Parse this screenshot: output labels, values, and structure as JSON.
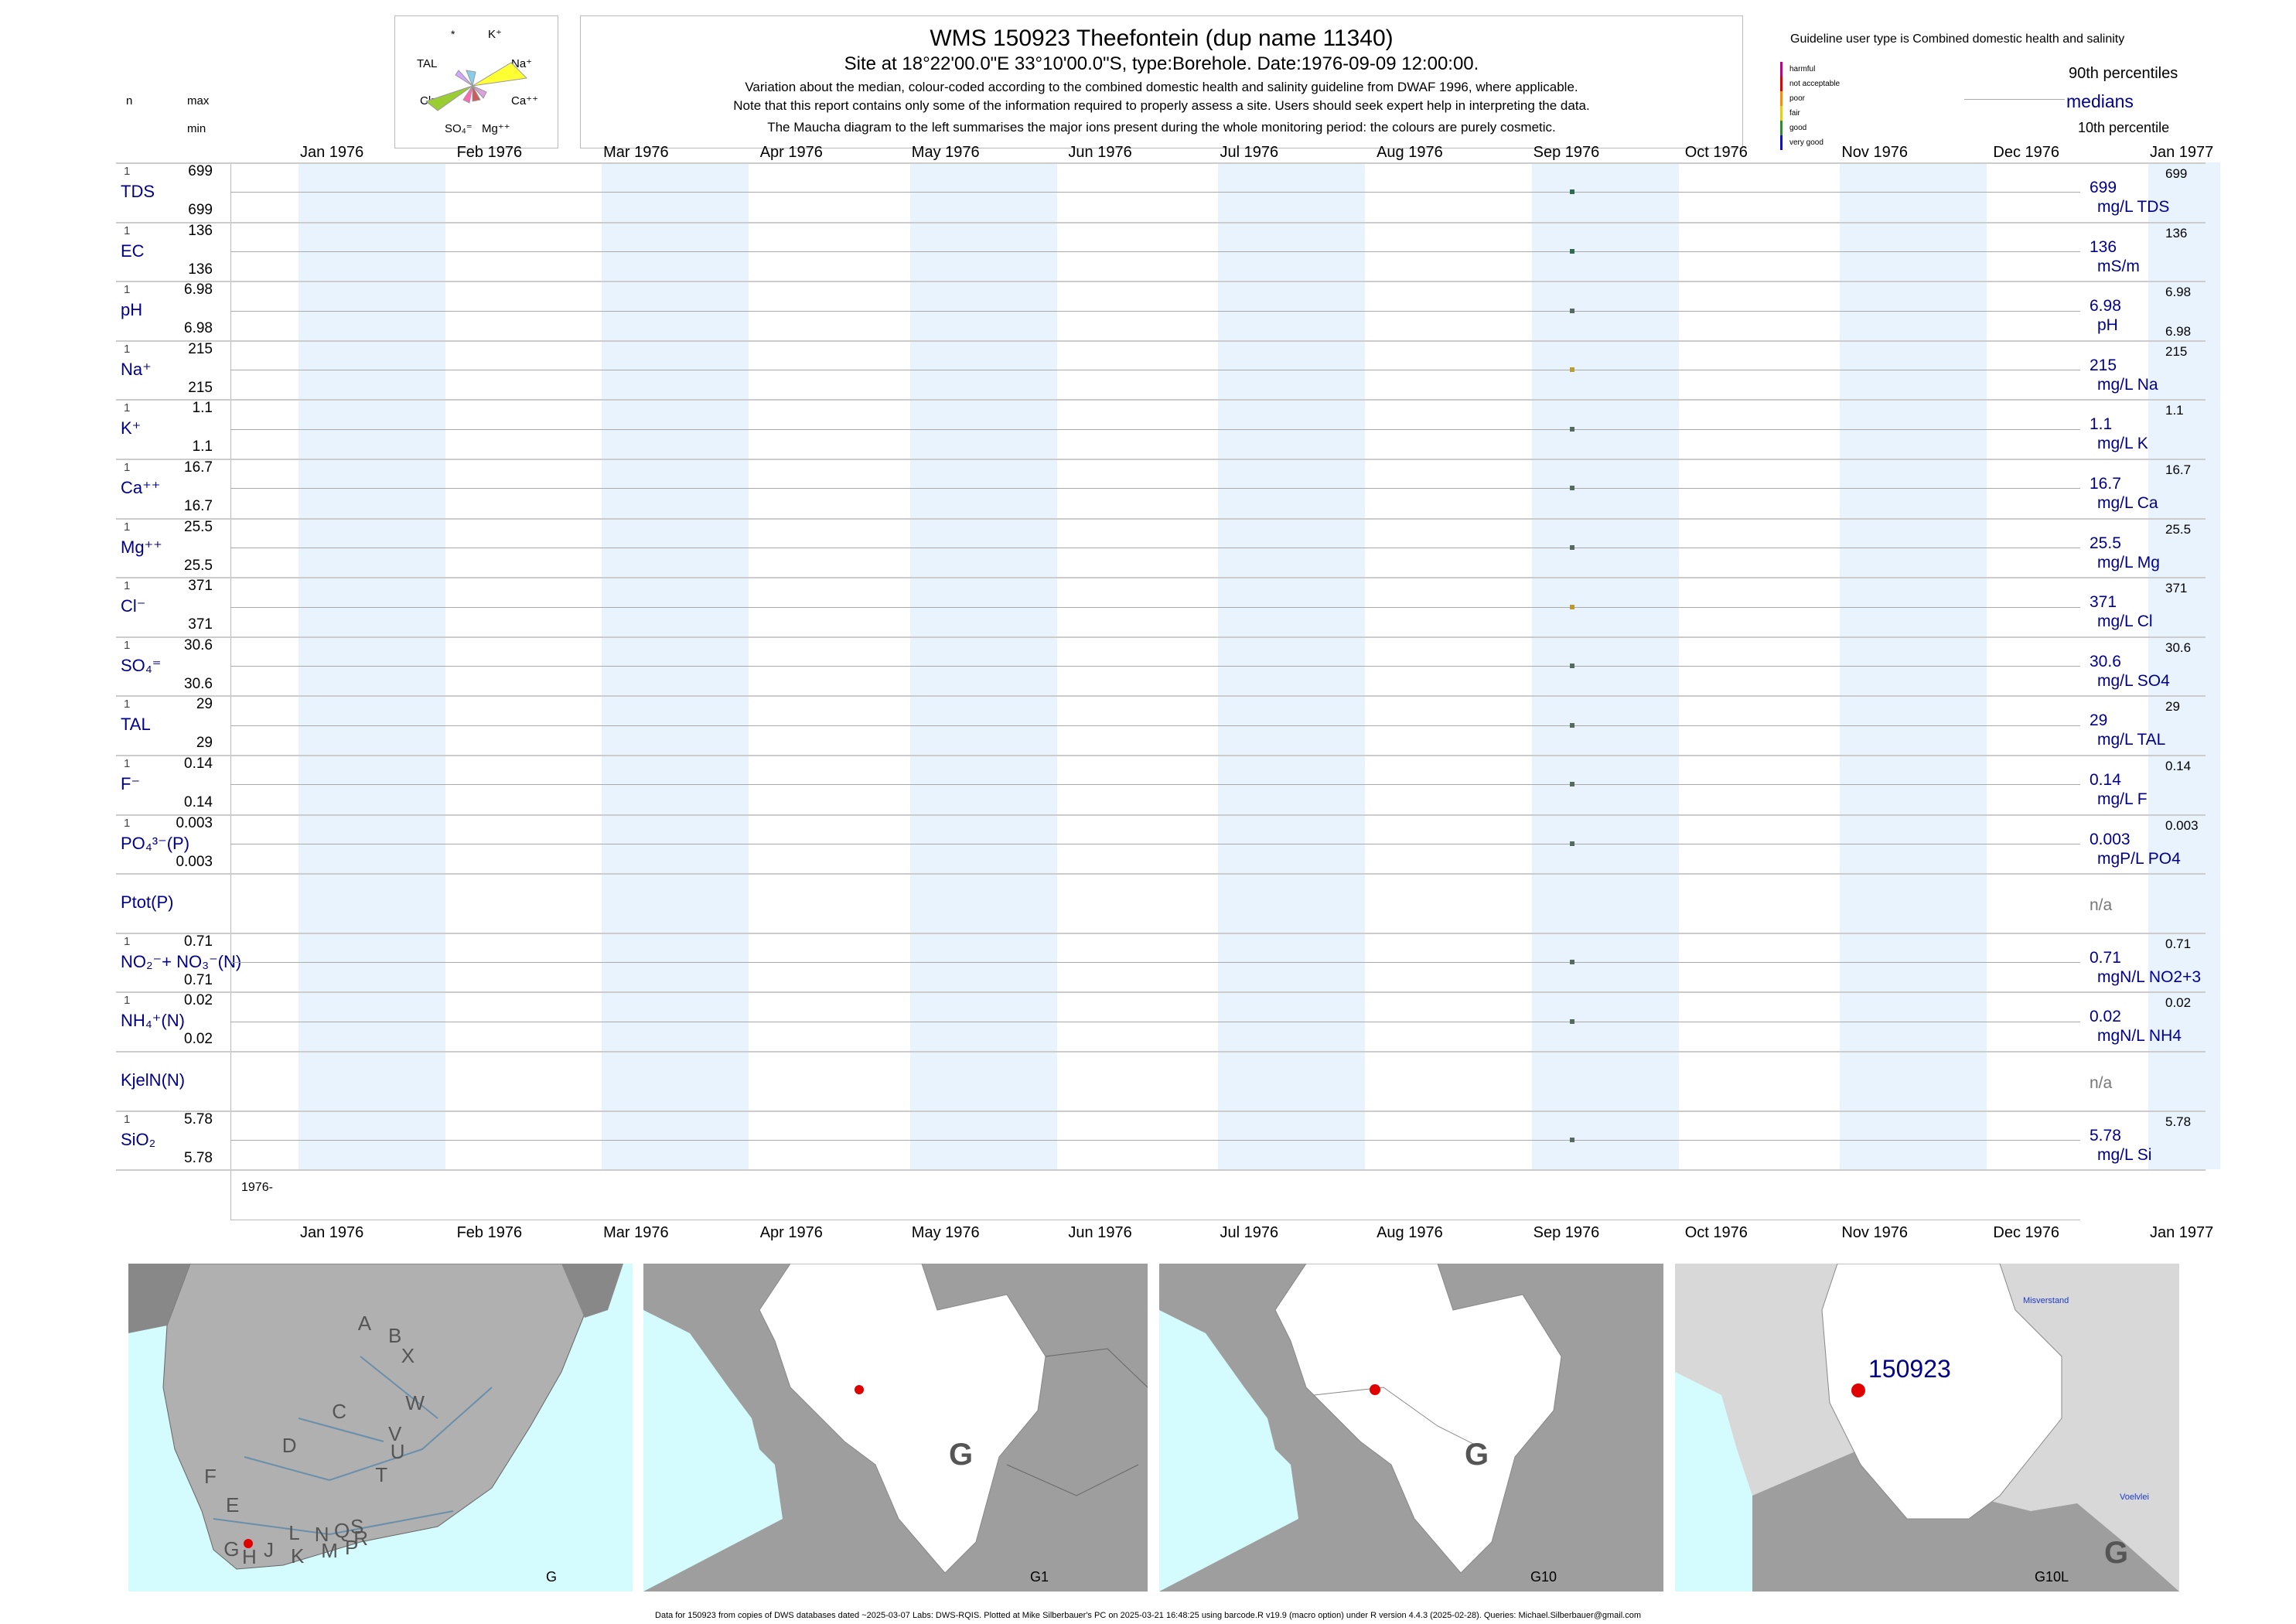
{
  "header": {
    "title": "WMS 150923  Theefontein (dup name 11340)",
    "site_line": "Site at 18°22'00.0\"E 33°10'00.0\"S, type:Borehole. Date:1976-09-09 12:00:00.",
    "note1": "Variation about the median,  colour-coded according to the combined domestic health and salinity guideline from DWAF 1996, where applicable.",
    "note2": "Note that this report contains only some of the information required to properly assess a site. Users should seek expert help in interpreting the data.",
    "note3": "The Maucha diagram to the left summarises the major ions present during the whole monitoring period: the colours are purely cosmetic."
  },
  "maucha": {
    "labels": {
      "star": "*",
      "k": "K⁺",
      "tal": "TAL",
      "na": "Na⁺",
      "cl": "Cl⁻",
      "ca": "Ca⁺⁺",
      "so4": "SO₄⁼",
      "mg": "Mg⁺⁺"
    }
  },
  "left_header": {
    "n": "n",
    "max": "max",
    "min": "min"
  },
  "legend": {
    "title": "Guideline user type is Combined domestic health and salinity",
    "categories": [
      {
        "label": "harmful",
        "color": "#c0008c"
      },
      {
        "label": "not acceptable",
        "color": "#e00000"
      },
      {
        "label": "poor",
        "color": "#ff8c00"
      },
      {
        "label": "fair",
        "color": "#e8d000"
      },
      {
        "label": "good",
        "color": "#2e8b2e"
      },
      {
        "label": "very good",
        "color": "#1010c0"
      }
    ],
    "p90": "90th percentiles",
    "median": "medians",
    "p10": "10th percentile"
  },
  "months": [
    "Jan 1976",
    "Feb 1976",
    "Mar 1976",
    "Apr 1976",
    "May 1976",
    "Jun 1976",
    "Jul 1976",
    "Aug 1976",
    "Sep 1976",
    "Oct 1976",
    "Nov 1976",
    "Dec 1976",
    "Jan 1977"
  ],
  "year_label": "1976-",
  "chart_data": {
    "type": "scatter",
    "sample_date": "1976-09-09",
    "xlim": [
      "1976-01-01",
      "1977-01-01"
    ],
    "parameters": [
      {
        "label": "TDS",
        "n": "1",
        "max": "699",
        "min": "699",
        "median": "699",
        "unit": "mg/L TDS",
        "p90": "699",
        "p10": "",
        "color": "#2e6b4f",
        "value": 699
      },
      {
        "label": "EC",
        "n": "1",
        "max": "136",
        "min": "136",
        "median": "136",
        "unit": "mS/m",
        "p90": "136",
        "p10": "",
        "color": "#2e6b4f",
        "value": 136
      },
      {
        "label": "pH",
        "n": "1",
        "max": "6.98",
        "min": "6.98",
        "median": "6.98",
        "unit": "pH",
        "p90": "6.98",
        "p10": "6.98",
        "color": "#556b5f",
        "value": 6.98
      },
      {
        "label": "Na⁺",
        "n": "1",
        "max": "215",
        "min": "215",
        "median": "215",
        "unit": "mg/L Na",
        "p90": "215",
        "p10": "",
        "color": "#b8a030",
        "value": 215
      },
      {
        "label": "K⁺",
        "n": "1",
        "max": "1.1",
        "min": "1.1",
        "median": "1.1",
        "unit": "mg/L K",
        "p90": "1.1",
        "p10": "",
        "color": "#556b5f",
        "value": 1.1
      },
      {
        "label": "Ca⁺⁺",
        "n": "1",
        "max": "16.7",
        "min": "16.7",
        "median": "16.7",
        "unit": "mg/L Ca",
        "p90": "16.7",
        "p10": "",
        "color": "#556b5f",
        "value": 16.7
      },
      {
        "label": "Mg⁺⁺",
        "n": "1",
        "max": "25.5",
        "min": "25.5",
        "median": "25.5",
        "unit": "mg/L Mg",
        "p90": "25.5",
        "p10": "",
        "color": "#556b5f",
        "value": 25.5
      },
      {
        "label": "Cl⁻",
        "n": "1",
        "max": "371",
        "min": "371",
        "median": "371",
        "unit": "mg/L Cl",
        "p90": "371",
        "p10": "",
        "color": "#b89a30",
        "value": 371
      },
      {
        "label": "SO₄⁼",
        "n": "1",
        "max": "30.6",
        "min": "30.6",
        "median": "30.6",
        "unit": "mg/L SO4",
        "p90": "30.6",
        "p10": "",
        "color": "#556b5f",
        "value": 30.6
      },
      {
        "label": "TAL",
        "n": "1",
        "max": "29",
        "min": "29",
        "median": "29",
        "unit": "mg/L TAL",
        "p90": "29",
        "p10": "",
        "color": "#556b5f",
        "value": 29
      },
      {
        "label": "F⁻",
        "n": "1",
        "max": "0.14",
        "min": "0.14",
        "median": "0.14",
        "unit": "mg/L F",
        "p90": "0.14",
        "p10": "",
        "color": "#556b5f",
        "value": 0.14
      },
      {
        "label": "PO₄³⁻(P)",
        "n": "1",
        "max": "0.003",
        "min": "0.003",
        "median": "0.003",
        "unit": "mgP/L PO4",
        "p90": "0.003",
        "p10": "",
        "color": "#556b5f",
        "value": 0.003
      },
      {
        "label": "Ptot(P)",
        "n": "",
        "max": "",
        "min": "",
        "median": "n/a",
        "unit": "",
        "p90": "",
        "p10": "",
        "color": "",
        "value": null
      },
      {
        "label": "NO₂⁻+ NO₃⁻(N)",
        "n": "1",
        "max": "0.71",
        "min": "0.71",
        "median": "0.71",
        "unit": "mgN/L NO2+3",
        "p90": "0.71",
        "p10": "",
        "color": "#556b5f",
        "value": 0.71
      },
      {
        "label": "NH₄⁺(N)",
        "n": "1",
        "max": "0.02",
        "min": "0.02",
        "median": "0.02",
        "unit": "mgN/L NH4",
        "p90": "0.02",
        "p10": "",
        "color": "#556b5f",
        "value": 0.02
      },
      {
        "label": "KjelN(N)",
        "n": "",
        "max": "",
        "min": "",
        "median": "n/a",
        "unit": "",
        "p90": "",
        "p10": "",
        "color": "",
        "value": null
      },
      {
        "label": "SiO₂",
        "n": "1",
        "max": "5.78",
        "min": "5.78",
        "median": "5.78",
        "unit": "mg/L Si",
        "p90": "5.78",
        "p10": "",
        "color": "#556b5f",
        "value": 5.78
      }
    ]
  },
  "maps": [
    {
      "label": "G",
      "letters": [
        "A",
        "B",
        "X",
        "W",
        "C",
        "V",
        "U",
        "T",
        "D",
        "F",
        "E",
        "G",
        "H",
        "J",
        "K",
        "L",
        "M",
        "N",
        "P",
        "Q",
        "R",
        "S"
      ]
    },
    {
      "label": "G1",
      "big": "G"
    },
    {
      "label": "G10",
      "big": "G"
    },
    {
      "label": "G10L",
      "big": "G",
      "site": "150923",
      "town1": "Misverstand",
      "town2": "Voelvlei"
    }
  ],
  "footer": "Data for 150923 from copies of DWS databases dated ~2025-03-07 Labs: DWS-RQIS. Plotted at Mike Silberbauer's PC on 2025-03-21 16:48:25 using barcode.R v19.9 (macro option) under R version 4.4.3 (2025-02-28). Queries: Michael.Silberbauer@gmail.com",
  "colors": {
    "band": "#e9f3fd",
    "label": "#00008b",
    "sea": "#d4fbfd",
    "land": "#9e9e9e",
    "catchment": "#ffffff",
    "site": "#e00000"
  }
}
